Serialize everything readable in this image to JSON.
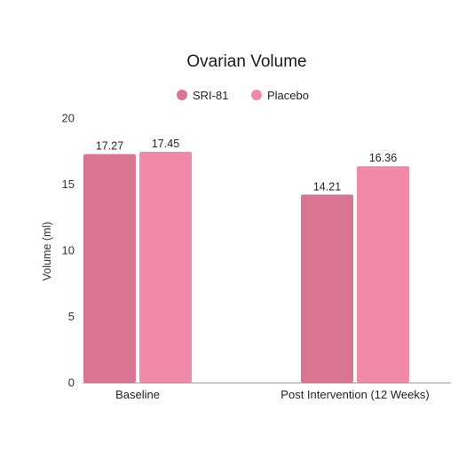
{
  "chart_data": {
    "type": "bar",
    "title": "Ovarian Volume",
    "xlabel": "",
    "ylabel": "Volume (ml)",
    "ylim": [
      0,
      20
    ],
    "yticks": [
      0,
      5,
      10,
      15,
      20
    ],
    "categories": [
      "Baseline",
      "Post Intervention (12 Weeks)"
    ],
    "series": [
      {
        "name": "SRI-81",
        "color": "#d97493",
        "values": [
          17.27,
          14.21
        ],
        "labels": [
          "17.27",
          "14.21"
        ]
      },
      {
        "name": "Placebo",
        "color": "#f08aa8",
        "values": [
          17.45,
          16.36
        ],
        "labels": [
          "17.45",
          "16.36"
        ]
      }
    ],
    "legend_position": "top-center",
    "grid": false
  }
}
